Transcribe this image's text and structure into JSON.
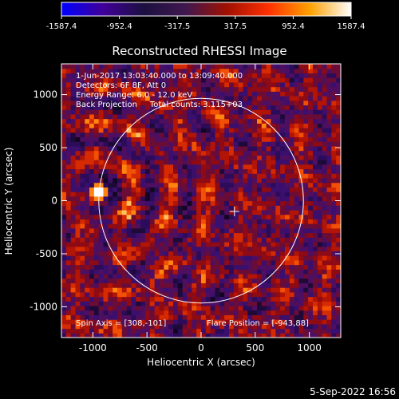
{
  "colorbar": {
    "ticks": [
      "-1587.4",
      "-952.4",
      "-317.5",
      "317.5",
      "952.4",
      "1587.4"
    ],
    "tick_values": [
      -1587.4,
      -952.4,
      -317.5,
      317.5,
      952.4,
      1587.4
    ],
    "range": [
      -1587.4,
      1587.4
    ],
    "palette": [
      "#0000ff",
      "#40009a",
      "#1c1040",
      "#401850",
      "#a01000",
      "#ff3000",
      "#ffa000",
      "#ffffff"
    ]
  },
  "chart_data": {
    "type": "heatmap",
    "title": "Reconstructed RHESSI Image",
    "xlabel": "Heliocentric X (arcsec)",
    "ylabel": "Heliocentric Y (arcsec)",
    "xlim": [
      -1290,
      1290
    ],
    "ylim": [
      -1290,
      1290
    ],
    "xticks": [
      -1000,
      -500,
      0,
      500,
      1000
    ],
    "yticks": [
      -1000,
      -500,
      0,
      500,
      1000
    ],
    "xtick_labels": [
      "-1000",
      "-500",
      "0",
      "500",
      "1000"
    ],
    "ytick_labels": [
      "-1000",
      "-500",
      "0",
      "500",
      "1000"
    ],
    "solar_limb": {
      "center": [
        0,
        0
      ],
      "radius_arcsec": 945
    },
    "spin_axis_marker": [
      308,
      -101
    ],
    "flare_position": [
      -943,
      88
    ],
    "peak_value": 1587.4,
    "info_lines": [
      "1-Jun-2017 13:03:40.000 to 13:09:40.000",
      "Detectors: 6F 8F, Att 0",
      "Energy Range: 6.0 - 12.0 keV",
      "Back Projection     Total counts: 3.115+03"
    ],
    "spin_axis_text": "Spin Axis = [308,-101]",
    "flare_position_text": "Flare Position = [-943,88]"
  },
  "footer": {
    "timestamp": "5-Sep-2022 16:56"
  }
}
